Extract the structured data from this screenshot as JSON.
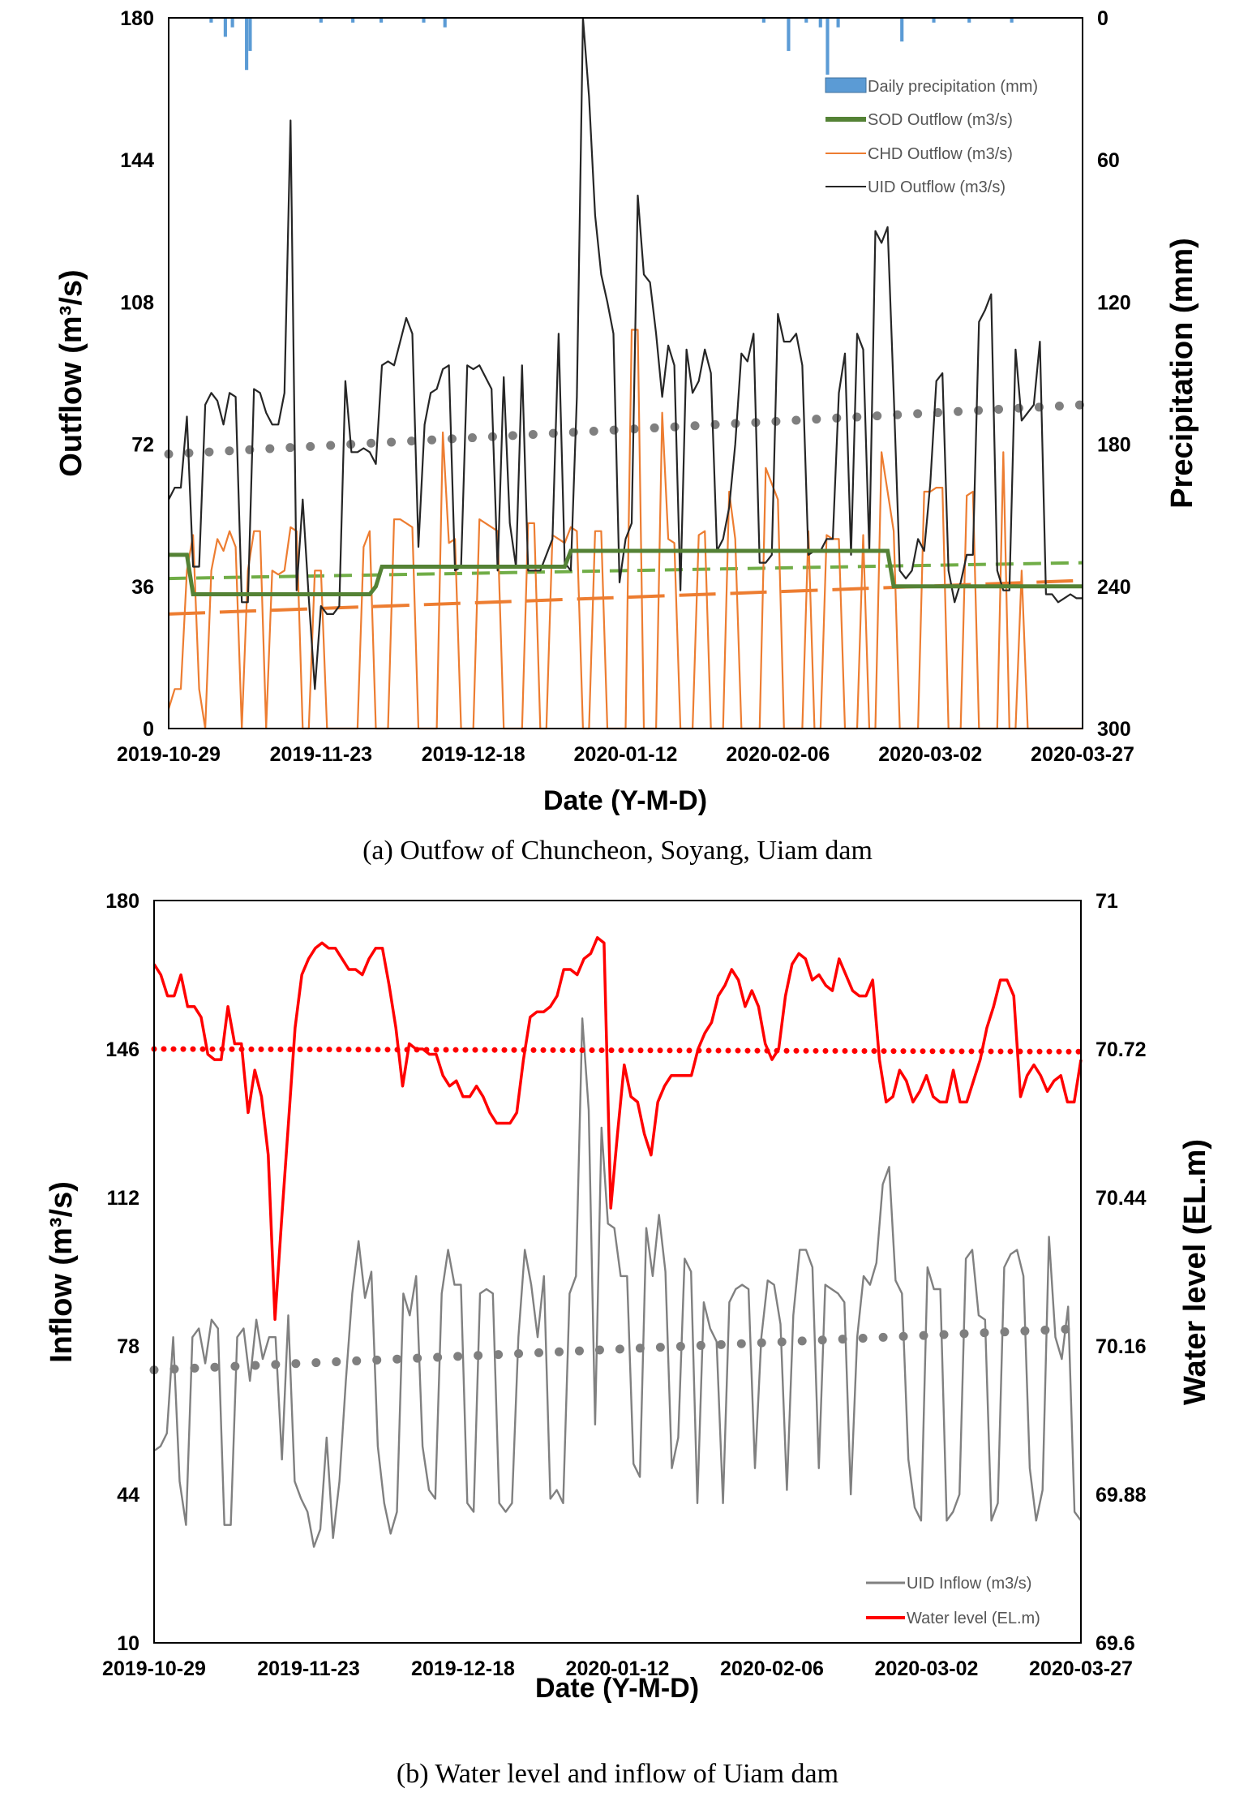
{
  "chart_data": [
    {
      "type": "line",
      "xlabel": "Date (Y-M-D)",
      "ylabel": "Outflow (m³/s)",
      "y2label": "Precipitation (mm)",
      "x_tick_labels": [
        "2019-10-29",
        "2019-11-23",
        "2019-12-18",
        "2020-01-12",
        "2020-02-06",
        "2020-03-02",
        "2020-03-27"
      ],
      "ylim": [
        0,
        180
      ],
      "y_ticks": [
        "0",
        "36",
        "72",
        "108",
        "144",
        "180"
      ],
      "y2lim": [
        300,
        0
      ],
      "y2_ticks": [
        "300",
        "240",
        "180",
        "120",
        "60",
        "0"
      ],
      "legend": [
        "Daily precipitation (mm)",
        "SOD Outflow (m3/s)",
        "CHD Outflow (m3/s)",
        "UID Outflow (m3/s)"
      ],
      "legend_position": "top-right",
      "colors": {
        "precipitation": "#5b9bd5",
        "sod": "#548235",
        "chd": "#ed7d31",
        "uid": "#262626",
        "uid_trend": "#7f7f7f",
        "sod_trend": "#70ad47"
      },
      "series": [
        {
          "name": "Daily precipitation (mm)",
          "kind": "bar",
          "values": [
            0,
            0,
            0,
            0,
            0,
            0,
            0,
            0,
            0,
            0,
            0,
            0,
            2,
            0,
            0,
            0,
            8,
            0,
            4,
            0,
            0,
            0,
            22,
            14,
            0,
            0,
            0,
            0,
            0,
            0,
            0,
            0,
            0,
            0,
            0,
            0,
            0,
            0,
            0,
            0,
            0,
            0,
            0,
            2,
            0,
            0,
            0,
            0,
            0,
            0,
            0,
            0,
            2,
            0,
            0,
            0,
            0,
            0,
            0,
            0,
            2,
            0,
            0,
            0,
            0,
            0,
            0,
            0,
            0,
            0,
            0,
            0,
            2,
            0,
            0,
            0,
            0,
            0,
            4,
            0,
            0,
            0,
            0,
            0,
            0,
            0,
            0,
            0,
            0,
            0,
            0,
            0,
            0,
            0,
            0,
            0,
            0,
            0,
            0,
            0,
            0,
            0,
            0,
            0,
            0,
            0,
            0,
            0,
            0,
            0,
            0,
            0,
            0,
            0,
            0,
            0,
            0,
            0,
            0,
            0,
            0,
            0,
            0,
            0,
            0,
            0,
            0,
            0,
            0,
            0,
            0,
            0,
            0,
            0,
            0,
            0,
            0,
            0,
            0,
            0,
            0,
            0,
            0,
            0,
            0,
            0,
            0,
            0,
            0,
            0,
            0,
            0,
            0,
            0,
            0,
            0,
            0,
            0,
            0,
            0,
            0,
            0,
            0,
            0,
            0,
            0,
            0,
            0,
            2,
            0,
            0,
            0,
            0,
            0,
            0,
            14,
            0,
            0,
            0,
            0,
            2,
            0,
            0,
            0,
            4,
            0,
            24,
            0,
            0,
            4,
            0,
            0,
            0,
            0,
            0,
            0,
            0,
            0,
            0,
            0,
            0,
            0,
            0,
            0,
            0,
            0,
            0,
            10,
            0,
            0,
            0,
            0,
            0,
            0,
            0,
            0,
            2,
            0,
            0,
            0,
            0,
            0,
            0,
            0,
            0,
            0,
            2,
            0,
            0,
            0,
            0,
            0,
            0,
            0,
            0,
            0,
            0,
            0,
            2,
            0,
            0,
            0,
            0,
            0,
            0,
            0,
            0,
            0,
            0,
            0,
            0,
            0,
            0,
            0,
            0,
            0,
            0,
            0,
            0
          ]
        },
        {
          "name": "SOD Outflow (m3/s)",
          "kind": "line",
          "points": [
            [
              0,
              44
            ],
            [
              3,
              44
            ],
            [
              4,
              34
            ],
            [
              33,
              34
            ],
            [
              34,
              36
            ],
            [
              35,
              41
            ],
            [
              65,
              41
            ],
            [
              66,
              45
            ],
            [
              118,
              45
            ],
            [
              119,
              36
            ],
            [
              150,
              36
            ]
          ]
        },
        {
          "name": "CHD Outflow (m3/s)",
          "kind": "line",
          "values": [
            5,
            10,
            10,
            40,
            49,
            10,
            0,
            40,
            48,
            45,
            50,
            46,
            0,
            40,
            50,
            50,
            0,
            40,
            39,
            40,
            51,
            50,
            0,
            0,
            40,
            40,
            0,
            0,
            0,
            0,
            0,
            0,
            46,
            50,
            0,
            0,
            0,
            53,
            53,
            52,
            51,
            0,
            0,
            0,
            0,
            75,
            47,
            48,
            0,
            0,
            0,
            53,
            52,
            51,
            50,
            0,
            0,
            0,
            0,
            52,
            52,
            0,
            0,
            49,
            48,
            47,
            51,
            50,
            0,
            0,
            50,
            50,
            0,
            0,
            0,
            0,
            101,
            101,
            0,
            0,
            0,
            80,
            48,
            47,
            0,
            0,
            0,
            49,
            50,
            0,
            0,
            0,
            60,
            48,
            0,
            0,
            0,
            0,
            66,
            62,
            58,
            0,
            0,
            0,
            0,
            50,
            0,
            0,
            49,
            48,
            48,
            0,
            0,
            0,
            49,
            0,
            0,
            70,
            60,
            50,
            0,
            0,
            0,
            0,
            60,
            60,
            61,
            61,
            0,
            0,
            0,
            59,
            60,
            0,
            0,
            0,
            0,
            70,
            0,
            0,
            40,
            0,
            0,
            0,
            0,
            0,
            0,
            0,
            0,
            0,
            0
          ]
        },
        {
          "name": "UID Outflow (m3/s)",
          "kind": "line",
          "values": [
            58,
            61,
            61,
            79,
            41,
            41,
            82,
            85,
            83,
            77,
            85,
            84,
            32,
            32,
            86,
            85,
            80,
            77,
            77,
            85,
            154,
            35,
            58,
            33,
            10,
            31,
            29,
            29,
            31,
            88,
            70,
            70,
            71,
            70,
            67,
            92,
            93,
            92,
            98,
            104,
            100,
            46,
            77,
            85,
            86,
            91,
            92,
            40,
            41,
            92,
            91,
            92,
            89,
            86,
            40,
            89,
            52,
            41,
            92,
            40,
            40,
            40,
            44,
            48,
            100,
            42,
            40,
            84,
            180,
            160,
            130,
            115,
            108,
            100,
            37,
            48,
            52,
            135,
            115,
            113,
            100,
            84,
            97,
            92,
            35,
            96,
            85,
            88,
            96,
            90,
            45,
            48,
            56,
            72,
            95,
            93,
            100,
            42,
            42,
            44,
            105,
            98,
            98,
            100,
            92,
            44,
            45,
            45,
            48,
            48,
            85,
            95,
            44,
            100,
            96,
            45,
            126,
            123,
            127,
            85,
            40,
            38,
            40,
            48,
            45,
            62,
            88,
            90,
            40,
            32,
            37,
            44,
            44,
            103,
            106,
            110,
            40,
            35,
            35,
            96,
            78,
            80,
            82,
            98,
            34,
            34,
            32,
            33,
            34,
            33,
            33
          ]
        },
        {
          "name": "UID trend",
          "kind": "trend",
          "points": [
            [
              0,
              69.5
            ],
            [
              150,
              82
            ]
          ]
        },
        {
          "name": "SOD trend",
          "kind": "trend",
          "points": [
            [
              0,
              38
            ],
            [
              150,
              42
            ]
          ]
        },
        {
          "name": "CHD trend",
          "kind": "trend",
          "points": [
            [
              0,
              29
            ],
            [
              150,
              37.5
            ]
          ]
        }
      ]
    },
    {
      "type": "line",
      "xlabel": "Date (Y-M-D)",
      "ylabel": "Inflow (m³/s)",
      "y2label": "Water level (EL.m)",
      "x_tick_labels": [
        "2019-10-29",
        "2019-11-23",
        "2019-12-18",
        "2020-01-12",
        "2020-02-06",
        "2020-03-02",
        "2020-03-27"
      ],
      "ylim": [
        10,
        180
      ],
      "y_ticks": [
        "10",
        "44",
        "78",
        "112",
        "146",
        "180"
      ],
      "y2lim": [
        69.6,
        71
      ],
      "y2_ticks": [
        "69.6",
        "69.88",
        "70.16",
        "70.44",
        "70.72",
        "71"
      ],
      "legend": [
        "UID Inflow (m3/s)",
        "Water level (EL.m)"
      ],
      "legend_position": "bottom-right",
      "colors": {
        "inflow": "#808080",
        "level": "#ff0000",
        "inflow_trend": "#7f7f7f",
        "level_mean": "#ff0000"
      },
      "series": [
        {
          "name": "UID Inflow (m3/s)",
          "kind": "line",
          "values": [
            54,
            55,
            58,
            80,
            47,
            37,
            80,
            82,
            74,
            84,
            82,
            37,
            37,
            80,
            82,
            70,
            84,
            75,
            80,
            80,
            52,
            85,
            47,
            43,
            40,
            32,
            36,
            57,
            34,
            47,
            70,
            90,
            102,
            89,
            95,
            55,
            42,
            35,
            40,
            90,
            85,
            94,
            55,
            45,
            43,
            90,
            100,
            92,
            92,
            42,
            40,
            90,
            91,
            90,
            42,
            40,
            42,
            80,
            100,
            92,
            80,
            94,
            43,
            45,
            42,
            90,
            94,
            153,
            132,
            60,
            128,
            106,
            105,
            94,
            94,
            51,
            48,
            105,
            94,
            108,
            95,
            50,
            57,
            98,
            95,
            42,
            88,
            82,
            79,
            42,
            88,
            91,
            92,
            91,
            50,
            80,
            93,
            92,
            83,
            45,
            85,
            100,
            100,
            96,
            50,
            92,
            91,
            90,
            88,
            44,
            80,
            94,
            92,
            97,
            115,
            119,
            93,
            90,
            52,
            41,
            38,
            96,
            91,
            91,
            38,
            40,
            44,
            98,
            100,
            85,
            84,
            38,
            42,
            96,
            99,
            100,
            94,
            50,
            38,
            45,
            103,
            80,
            75,
            87,
            40,
            38
          ]
        },
        {
          "name": "Water level (EL.m)",
          "kind": "line",
          "values": [
            70.88,
            70.86,
            70.82,
            70.82,
            70.86,
            70.8,
            70.8,
            70.78,
            70.71,
            70.7,
            70.7,
            70.8,
            70.73,
            70.73,
            70.6,
            70.68,
            70.63,
            70.52,
            70.21,
            70.4,
            70.58,
            70.76,
            70.86,
            70.89,
            70.91,
            70.92,
            70.91,
            70.91,
            70.89,
            70.87,
            70.87,
            70.86,
            70.89,
            70.91,
            70.91,
            70.84,
            70.76,
            70.65,
            70.73,
            70.72,
            70.72,
            70.71,
            70.71,
            70.67,
            70.65,
            70.66,
            70.63,
            70.63,
            70.65,
            70.63,
            70.6,
            70.58,
            70.58,
            70.58,
            70.6,
            70.7,
            70.78,
            70.79,
            70.79,
            70.8,
            70.82,
            70.87,
            70.87,
            70.86,
            70.89,
            70.9,
            70.93,
            70.92,
            70.42,
            70.56,
            70.69,
            70.63,
            70.62,
            70.56,
            70.52,
            70.62,
            70.65,
            70.67,
            70.67,
            70.67,
            70.67,
            70.72,
            70.75,
            70.77,
            70.82,
            70.84,
            70.87,
            70.85,
            70.8,
            70.83,
            70.8,
            70.73,
            70.7,
            70.72,
            70.82,
            70.88,
            70.9,
            70.89,
            70.85,
            70.86,
            70.84,
            70.83,
            70.89,
            70.86,
            70.83,
            70.82,
            70.82,
            70.85,
            70.7,
            70.62,
            70.63,
            70.68,
            70.66,
            70.62,
            70.64,
            70.67,
            70.63,
            70.62,
            70.62,
            70.68,
            70.62,
            70.62,
            70.66,
            70.7,
            70.76,
            70.8,
            70.85,
            70.85,
            70.82,
            70.63,
            70.67,
            70.69,
            70.67,
            70.64,
            70.66,
            70.67,
            70.62,
            70.62,
            70.7
          ]
        },
        {
          "name": "Inflow trend",
          "kind": "trend",
          "points": [
            [
              0,
              72.5
            ],
            [
              150,
              82
            ]
          ]
        },
        {
          "name": "Water level mean",
          "kind": "trend",
          "axis": "y2",
          "points": [
            [
              0,
              70.72
            ],
            [
              150,
              70.715
            ]
          ]
        }
      ]
    }
  ],
  "captions": {
    "a": "(a) Outfow of Chuncheon, Soyang, Uiam dam",
    "b": "(b) Water level and inflow of Uiam dam"
  }
}
